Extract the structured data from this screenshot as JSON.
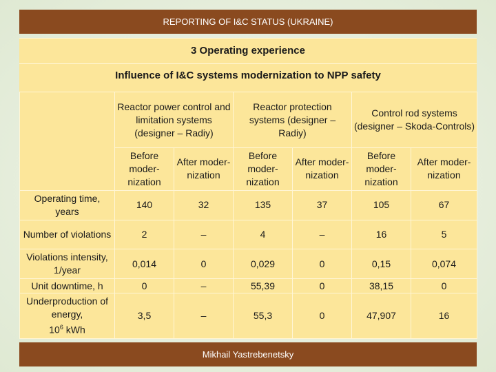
{
  "header": {
    "title": "REPORTING OF I&C STATUS (UKRAINE)"
  },
  "section": {
    "title": "3 Operating experience",
    "subtitle": "Influence of I&C systems modernization to NPP safety"
  },
  "table": {
    "groups": [
      "Reactor power control and limitation systems (designer – Radiy)",
      "Reactor protection systems (designer – Radiy)",
      "Control rod systems (designer – Skoda-Controls)"
    ],
    "subheads": {
      "before": "Before moder­nization",
      "after": "After moder­nization"
    },
    "rows": [
      {
        "label": "Operating time, years",
        "values": [
          "140",
          "32",
          "135",
          "37",
          "105",
          "67"
        ]
      },
      {
        "label": "Number of violations",
        "values": [
          "2",
          "–",
          "4",
          "–",
          "16",
          "5"
        ]
      },
      {
        "label": "Violations intensity, 1/year",
        "values": [
          "0,014",
          "0",
          "0,029",
          "0",
          "0,15",
          "0,074"
        ]
      },
      {
        "label": "Unit downtime, h",
        "values": [
          "0",
          "–",
          "55,39",
          "0",
          "38,15",
          "0"
        ]
      },
      {
        "label_main": "Underproduction of energy,",
        "label_unit": "10",
        "label_exp": "6",
        "label_unit_tail": " kWh",
        "values": [
          "3,5",
          "–",
          "55,3",
          "0",
          "47,907",
          "16"
        ]
      }
    ]
  },
  "footer": {
    "author": "Mikhail Yastrebenetsky"
  }
}
